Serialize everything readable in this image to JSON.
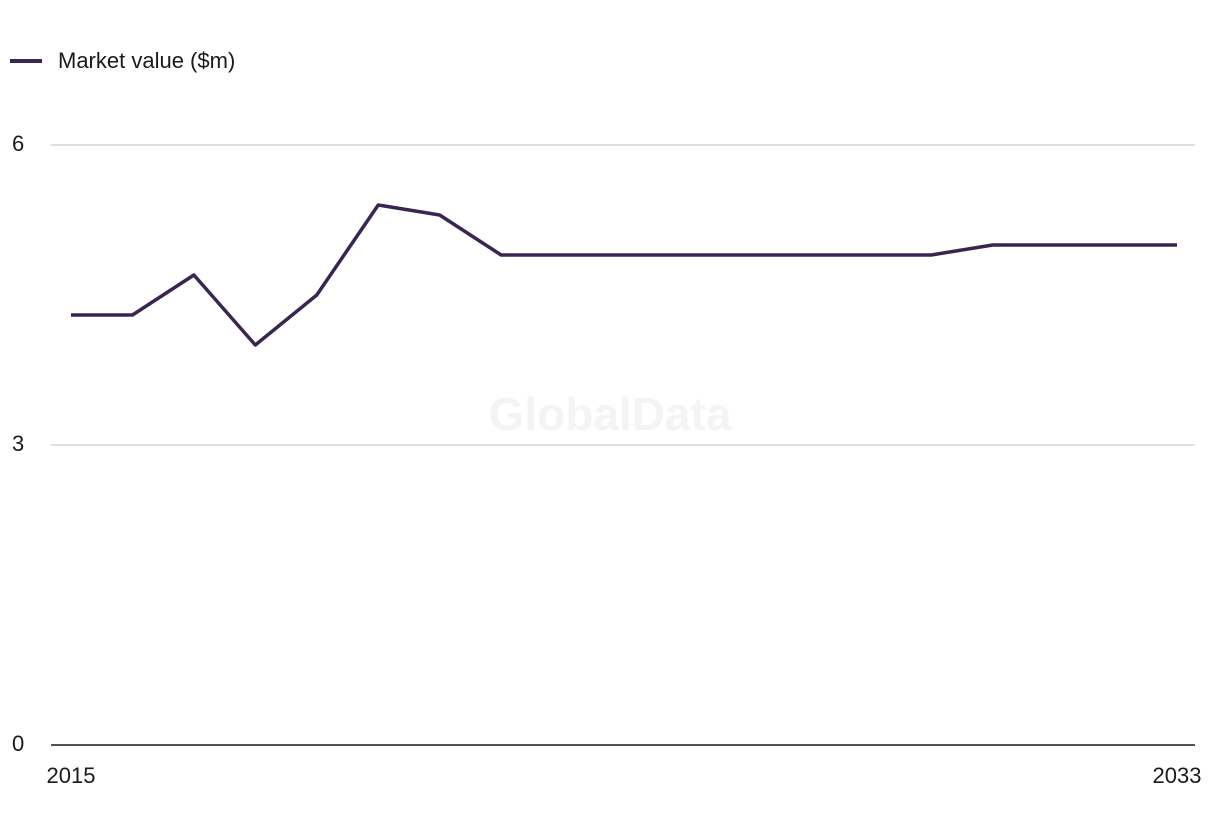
{
  "chart_data": {
    "type": "line",
    "legend": "Market value ($m)",
    "watermark": "GlobalData",
    "x": [
      2015,
      2016,
      2017,
      2018,
      2019,
      2020,
      2021,
      2022,
      2023,
      2024,
      2025,
      2026,
      2027,
      2028,
      2029,
      2030,
      2031,
      2032,
      2033
    ],
    "series": [
      {
        "name": "Market value ($m)",
        "color": "#3a2551",
        "values": [
          4.3,
          4.3,
          4.7,
          4.0,
          4.5,
          5.4,
          5.3,
          4.9,
          4.9,
          4.9,
          4.9,
          4.9,
          4.9,
          4.9,
          4.9,
          5.0,
          5.0,
          5.0,
          5.0
        ]
      }
    ],
    "xlim": [
      2015,
      2033
    ],
    "xticks": [
      2015,
      2033
    ],
    "ylim": [
      0,
      6
    ],
    "yticks": [
      0,
      3,
      6
    ],
    "grid": true
  }
}
